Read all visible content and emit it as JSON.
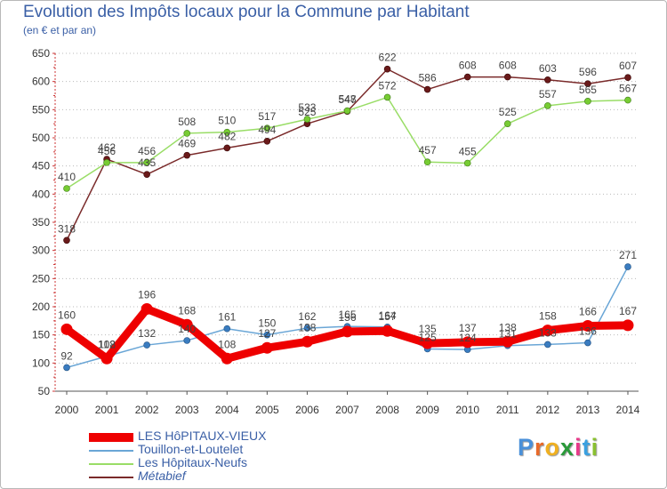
{
  "title": "Evolution des Impôts locaux pour la Commune par Habitant",
  "subtitle": "(en € et par an)",
  "logo": {
    "letters": [
      "P",
      "r",
      "o",
      "x",
      "i",
      "t",
      "i"
    ],
    "colors": [
      "#4a90d9",
      "#e86a2a",
      "#f0b020",
      "#2a9a3a",
      "#e83a8a",
      "#3aa0e0",
      "#8ac030"
    ]
  },
  "chart_data": {
    "type": "line",
    "title": "Evolution des Impôts locaux pour la Commune par Habitant",
    "subtitle": "(en € et par an)",
    "xlabel": "",
    "ylabel": "",
    "x": [
      "2000",
      "2001",
      "2002",
      "2003",
      "2004",
      "2005",
      "2006",
      "2007",
      "2008",
      "2009",
      "2010",
      "2011",
      "2012",
      "2013",
      "2014"
    ],
    "ylim": [
      50,
      650
    ],
    "yticks": [
      50,
      100,
      150,
      200,
      250,
      300,
      350,
      400,
      450,
      500,
      550,
      600,
      650
    ],
    "grid": "horizontal dotted",
    "legend_position": "bottom-left",
    "series": [
      {
        "name": "LES HôPITAUX-VIEUX",
        "color": "#ee0000",
        "marker_color": "#ee0000",
        "values": [
          160,
          108,
          196,
          168,
          108,
          127,
          138,
          156,
          157,
          135,
          137,
          138,
          158,
          166,
          167
        ],
        "labels": [
          "160",
          "108",
          "196",
          "168",
          "108",
          "127",
          "138",
          "156",
          "157",
          "135",
          "137",
          "138",
          "158",
          "166",
          "167"
        ]
      },
      {
        "name": "Touillon-et-Loutelet",
        "color": "#6aa6d6",
        "marker_color": "#3a7cc0",
        "values": [
          92,
          112,
          132,
          140,
          161,
          150,
          162,
          165,
          164,
          125,
          124,
          131,
          133,
          136,
          271
        ],
        "labels": [
          "92",
          "112",
          "132",
          "140",
          "161",
          "150",
          "162",
          "165",
          "164",
          "125",
          "124",
          "131",
          "133",
          "136",
          "271"
        ]
      },
      {
        "name": "Les Hôpitaux-Neufs",
        "color": "#99dd66",
        "marker_color": "#77cc33",
        "values": [
          410,
          456,
          456,
          508,
          510,
          517,
          533,
          548,
          572,
          457,
          455,
          525,
          557,
          565,
          567
        ],
        "labels": [
          "410",
          "456",
          "456",
          "508",
          "510",
          "517",
          "533",
          "548",
          "572",
          "457",
          "455",
          "525",
          "557",
          "565",
          "567"
        ]
      },
      {
        "name": "Métabief",
        "color": "#7a2a2a",
        "marker_color": "#6a1a1a",
        "values": [
          318,
          462,
          435,
          469,
          482,
          494,
          525,
          547,
          622,
          586,
          608,
          608,
          603,
          596,
          607
        ],
        "labels": [
          "318",
          "462",
          "435",
          "469",
          "482",
          "494",
          "525",
          "547",
          "622",
          "586",
          "608",
          "608",
          "603",
          "596",
          "607"
        ]
      }
    ]
  }
}
